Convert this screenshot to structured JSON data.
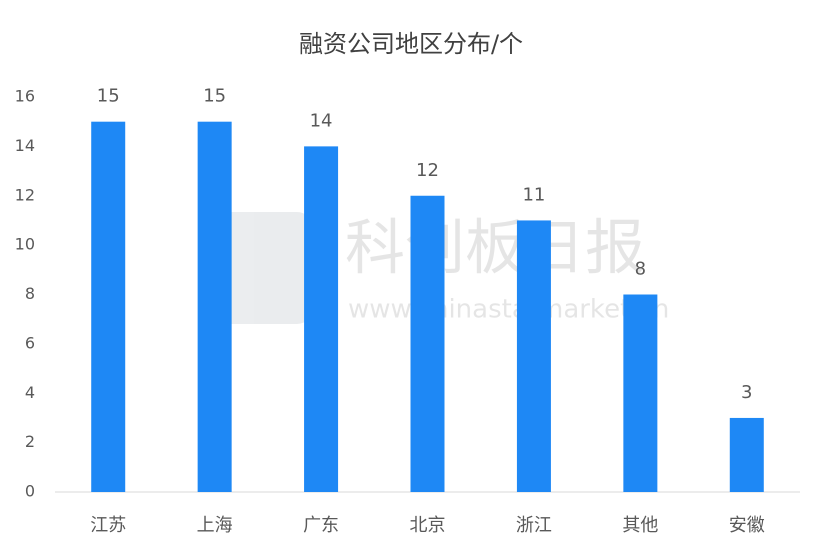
{
  "chart_data": {
    "type": "bar",
    "title": "融资公司地区分布/个",
    "categories": [
      "江苏",
      "上海",
      "广东",
      "北京",
      "浙江",
      "其他",
      "安徽"
    ],
    "values": [
      15,
      15,
      14,
      12,
      11,
      8,
      3
    ],
    "color": "#1e88f5",
    "ylim": [
      0,
      16
    ],
    "yticks": [
      0,
      2,
      4,
      6,
      8,
      10,
      12,
      14,
      16
    ],
    "grid": false,
    "watermark": {
      "name": "科创板日报",
      "url": "www.chinastarmarket.cn"
    }
  }
}
